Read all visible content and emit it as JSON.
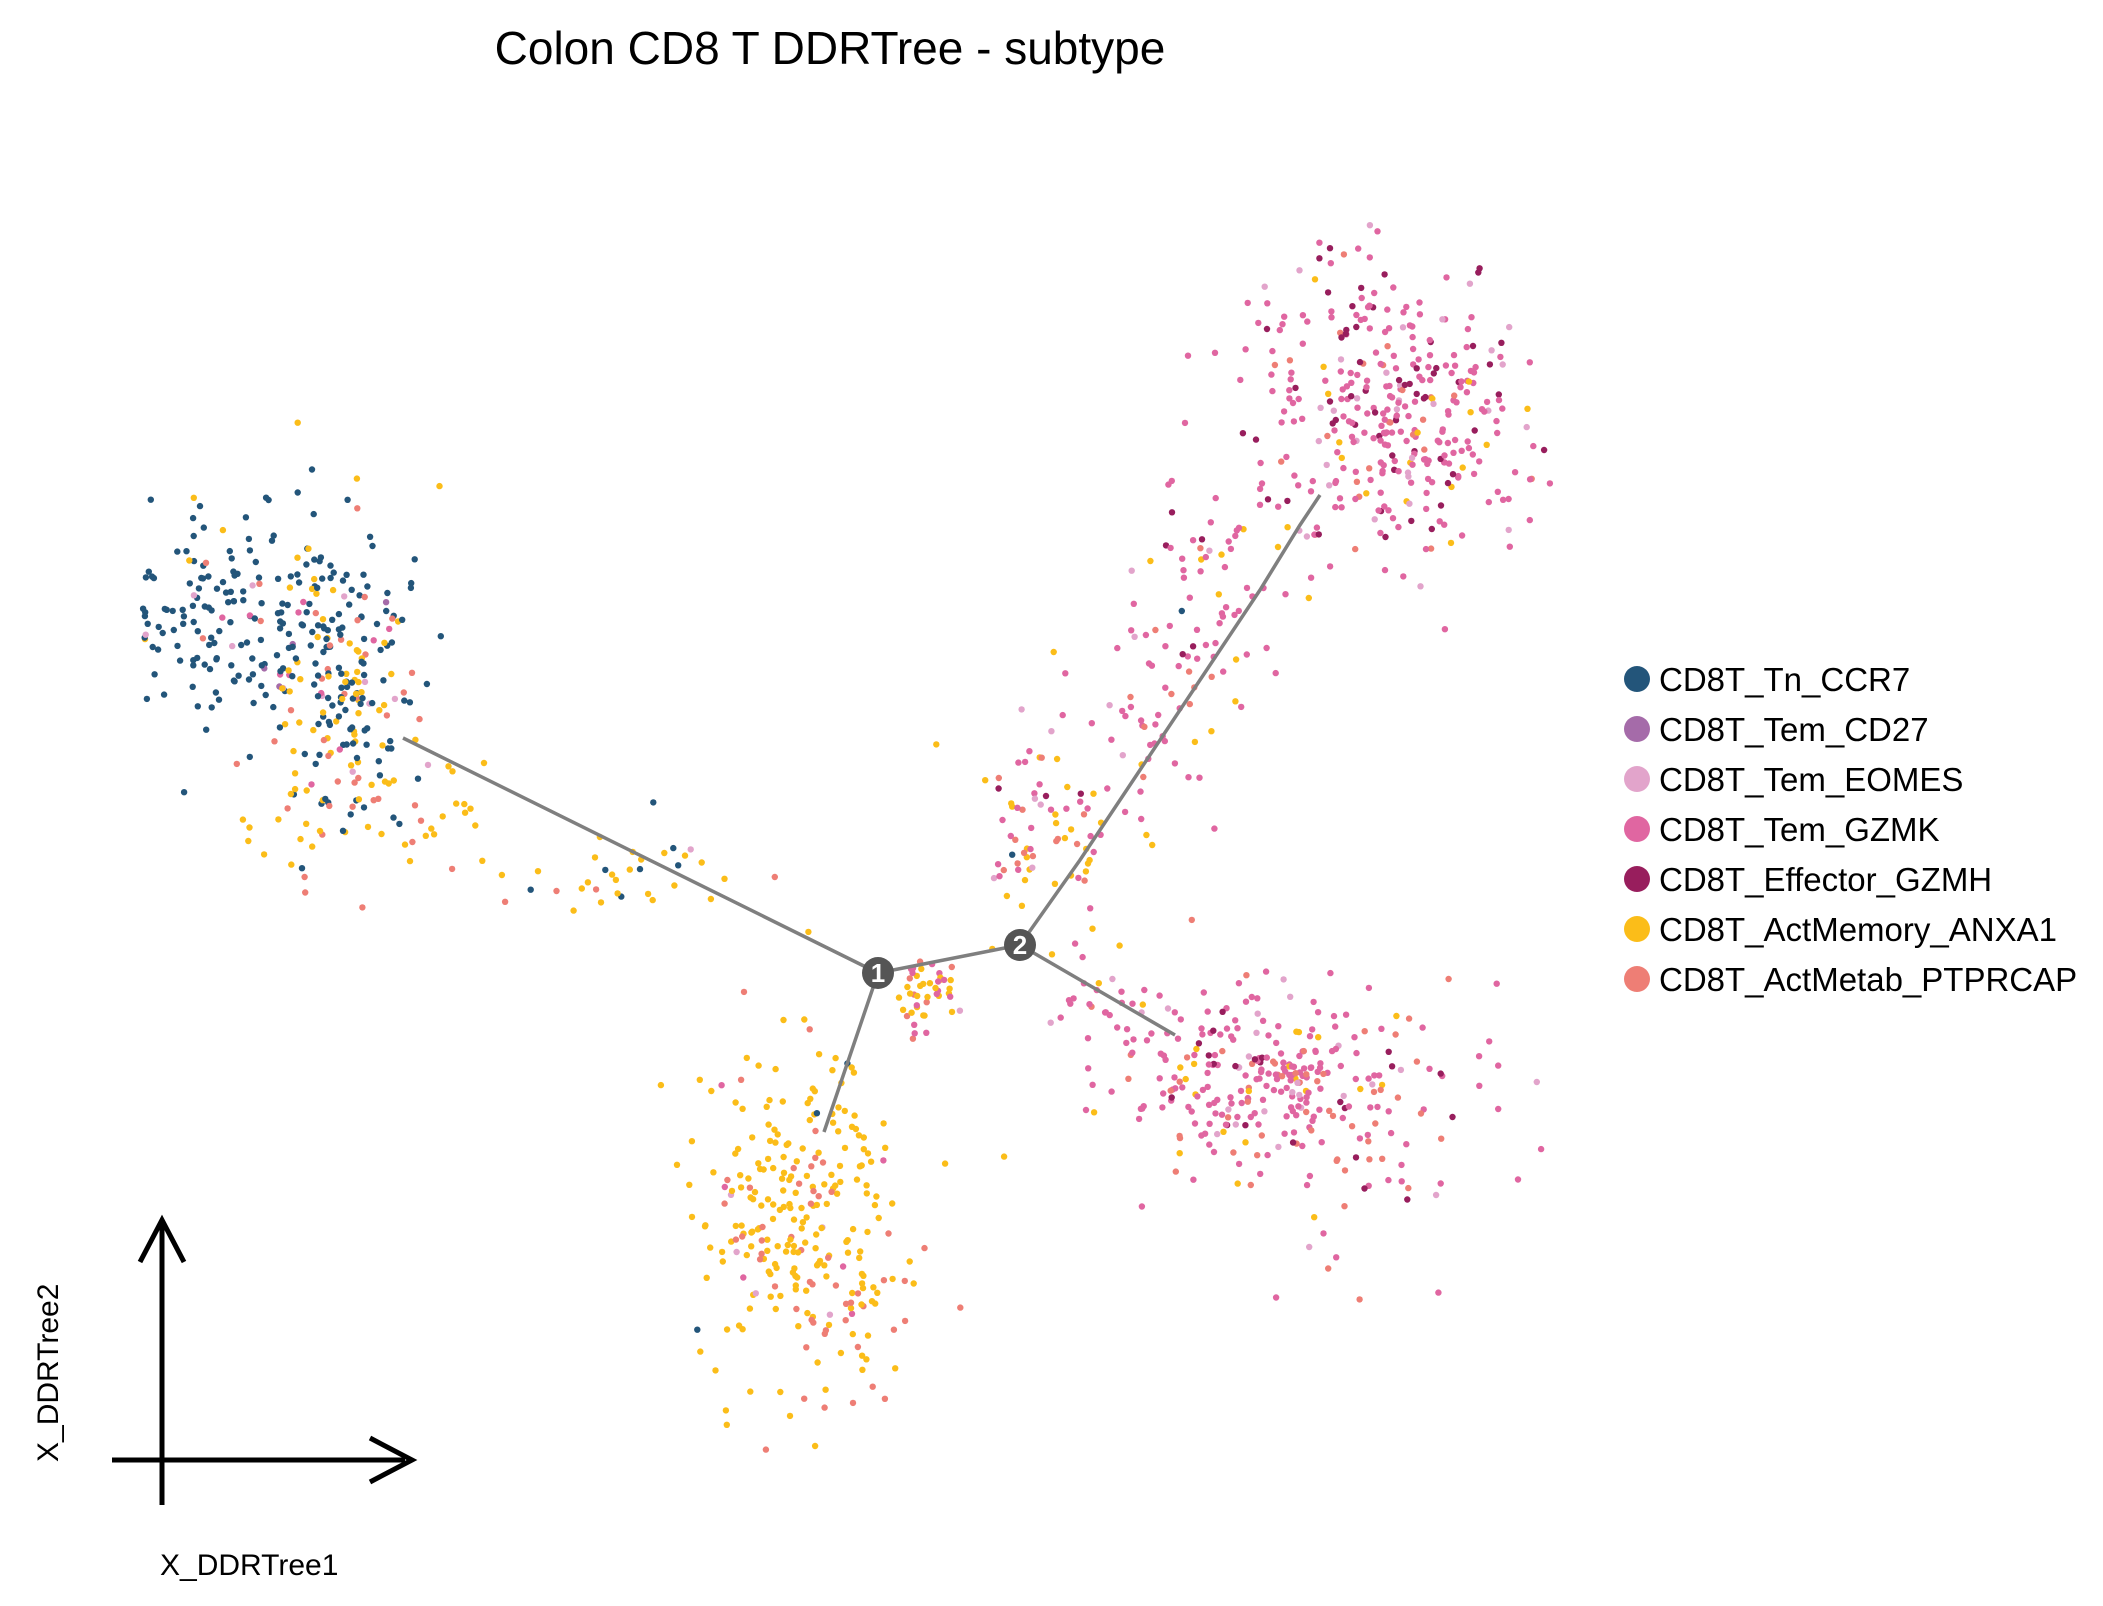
{
  "chart_data": {
    "type": "scatter",
    "title": "Colon CD8 T DDRTree - subtype",
    "xlabel": "X_DDRTree1",
    "ylabel": "X_DDRTree2",
    "grid": false,
    "legend_placement": "right",
    "series": [
      {
        "name": "CD8T_Tn_CCR7",
        "color": "#23557a"
      },
      {
        "name": "CD8T_Tem_CD27",
        "color": "#a56ba9"
      },
      {
        "name": "CD8T_Tem_EOMES",
        "color": "#e2a4cb"
      },
      {
        "name": "CD8T_Tem_GZMK",
        "color": "#e066a1"
      },
      {
        "name": "CD8T_Effector_GZMH",
        "color": "#981e5d"
      },
      {
        "name": "CD8T_ActMemory_ANXA1",
        "color": "#fbbd19"
      },
      {
        "name": "CD8T_ActMetab_PTPRCAP",
        "color": "#ee7e75"
      }
    ],
    "branch_nodes": [
      {
        "label": "1"
      },
      {
        "label": "2"
      }
    ]
  }
}
